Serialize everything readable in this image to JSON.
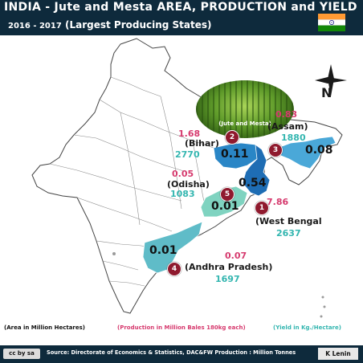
{
  "header": {
    "title": "INDIA - Jute and Mesta  AREA, PRODUCTION and  YIELD",
    "years": "2016 - 2017",
    "subtitle": "(Largest Producing States)"
  },
  "photo": {
    "caption": "(Jute and Mesta)"
  },
  "compass": {
    "label": "N"
  },
  "colors": {
    "production": "#d63a6e",
    "yield": "#34b6b0",
    "area_value": "#111111",
    "rank_badge": "#8f1a2e",
    "header_bg": "#0e2a3c"
  },
  "states": [
    {
      "rank": "1",
      "name": "(West Bengal",
      "production": "7.86",
      "yield": "2637",
      "area": "0.54",
      "fill": "#1e6db4"
    },
    {
      "rank": "2",
      "name": "(Bihar)",
      "production": "1.68",
      "yield": "2770",
      "area": "0.11",
      "fill": "#2a86c6"
    },
    {
      "rank": "3",
      "name": "(Assam)",
      "production": "0.83",
      "yield": "1880",
      "area": "0.08",
      "fill": "#4aa8d8"
    },
    {
      "rank": "4",
      "name": "(Andhra Pradesh)",
      "production": "0.07",
      "yield": "1697",
      "area": "0.01",
      "fill": "#5fbcc8"
    },
    {
      "rank": "5",
      "name": "(Odisha)",
      "production": "0.05",
      "yield": "1083",
      "area": "0.01",
      "fill": "#7fd3c0"
    }
  ],
  "legend": {
    "area": "(Area in Million Hectares)",
    "production": "(Production in Million Bales 180kg each)",
    "yield": "(Yield in Kg./Hectare)"
  },
  "footer": {
    "license": "cc by sa",
    "source": "Source: Directorate of Economics & Statistics, DAC&FW  Production : Million Tonnes",
    "author": "K Lenin"
  }
}
